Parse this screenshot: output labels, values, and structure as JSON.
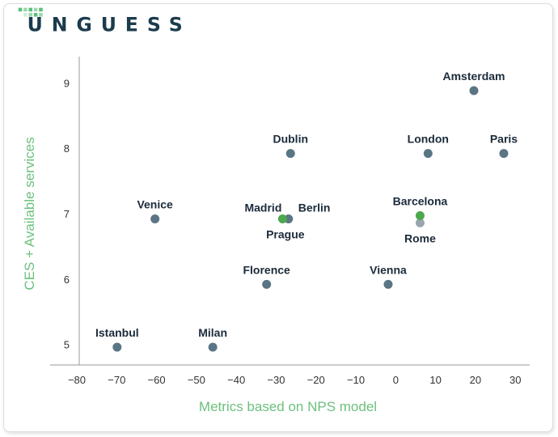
{
  "brand": {
    "logo_text": "UNGUESS",
    "colors": {
      "dark": "#1b3c4d",
      "accent": "#5bbf7a"
    }
  },
  "chart_data": {
    "type": "scatter",
    "title": "",
    "xlabel": "Metrics based on NPS model",
    "ylabel": "CES + Available services",
    "xlim": [
      -80,
      33
    ],
    "ylim": [
      4.7,
      9.4
    ],
    "xticks": [
      -80,
      -70,
      -60,
      -50,
      -40,
      -30,
      -20,
      -10,
      0,
      10,
      20,
      30
    ],
    "yticks": [
      5,
      6,
      7,
      8,
      9
    ],
    "grid": false,
    "colors": {
      "point": "#5b7584",
      "highlight": "#4da84f",
      "muted": "#9aa6ad",
      "axis_title": "#6cc07c"
    },
    "points": [
      {
        "label": "Amsterdam",
        "x": 19,
        "y": 8.88,
        "color": "#5b7584",
        "label_pos": "above"
      },
      {
        "label": "Dublin",
        "x": -27,
        "y": 7.92,
        "color": "#5b7584",
        "label_pos": "above"
      },
      {
        "label": "London",
        "x": 7.5,
        "y": 7.92,
        "color": "#5b7584",
        "label_pos": "above"
      },
      {
        "label": "Paris",
        "x": 26.5,
        "y": 7.92,
        "color": "#5b7584",
        "label_pos": "above"
      },
      {
        "label": "Venice",
        "x": -61,
        "y": 6.92,
        "color": "#5b7584",
        "label_pos": "above"
      },
      {
        "label": "Madrid",
        "x": -29,
        "y": 6.92,
        "color": "#4da84f",
        "label_pos": "above-left"
      },
      {
        "label": "Berlin",
        "x": -27.5,
        "y": 6.92,
        "color": "#5b7584",
        "label_pos": "above-right"
      },
      {
        "label": "Prague",
        "x": -28.3,
        "y": 6.92,
        "color": "#5b7584",
        "label_pos": "below",
        "hidden_point": true
      },
      {
        "label": "Barcelona",
        "x": 5.5,
        "y": 6.97,
        "color": "#4da84f",
        "label_pos": "above"
      },
      {
        "label": "Rome",
        "x": 5.5,
        "y": 6.86,
        "color": "#9aa6ad",
        "label_pos": "below"
      },
      {
        "label": "Florence",
        "x": -33,
        "y": 5.92,
        "color": "#5b7584",
        "label_pos": "above"
      },
      {
        "label": "Vienna",
        "x": -2.5,
        "y": 5.92,
        "color": "#5b7584",
        "label_pos": "above"
      },
      {
        "label": "Istanbul",
        "x": -70.5,
        "y": 4.96,
        "color": "#5b7584",
        "label_pos": "above"
      },
      {
        "label": "Milan",
        "x": -46.5,
        "y": 4.96,
        "color": "#5b7584",
        "label_pos": "above"
      }
    ]
  }
}
